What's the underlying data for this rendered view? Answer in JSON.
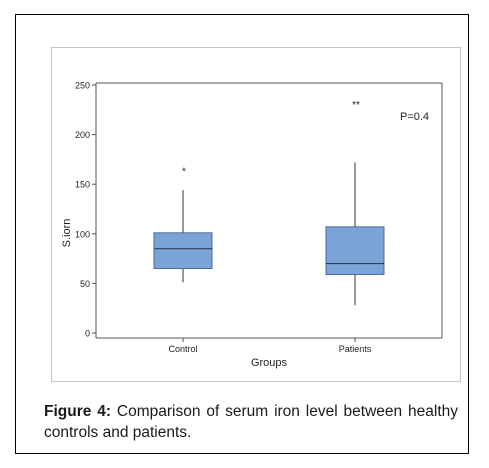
{
  "chart_data": {
    "type": "boxplot",
    "xlabel": "Groups",
    "ylabel": "S.iorn",
    "ylim": [
      0,
      250
    ],
    "yticks": [
      0,
      50,
      100,
      150,
      200,
      250
    ],
    "categories": [
      "Control",
      "Patients"
    ],
    "boxes": [
      {
        "category": "Control",
        "whisker_low": 51,
        "q1": 65,
        "median": 85,
        "q3": 101,
        "whisker_high": 144,
        "outliers": [
          165
        ]
      },
      {
        "category": "Patients",
        "whisker_low": 28,
        "q1": 59,
        "median": 70,
        "q3": 107,
        "whisker_high": 172,
        "outliers": [
          232
        ]
      }
    ],
    "annotation": "P=0.4",
    "outlier_symbols": [
      "*",
      "**"
    ],
    "box_fill": "#7ba3d8",
    "box_stroke": "#4a6a95",
    "axis_color": "#555555"
  },
  "caption": {
    "label": "Figure 4:",
    "text": " Comparison of serum iron level between healthy controls and patients."
  }
}
